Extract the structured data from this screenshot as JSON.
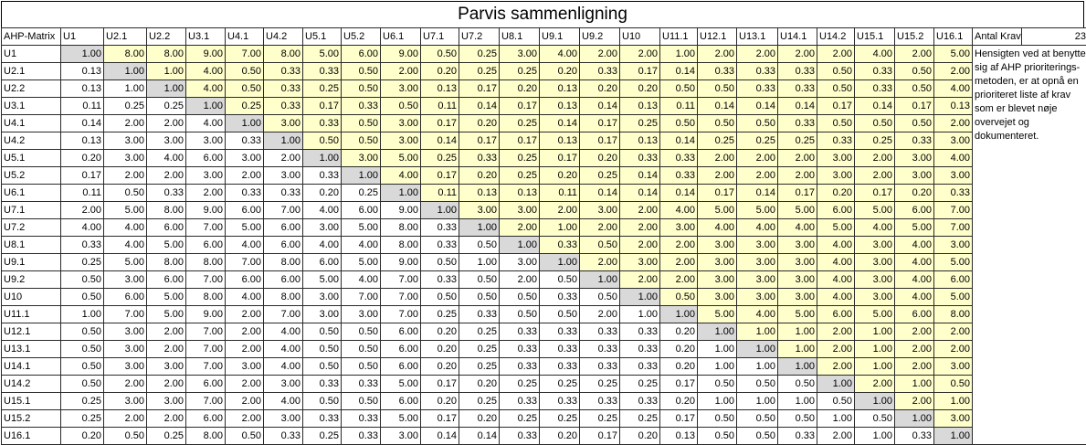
{
  "title": "Parvis sammenligning",
  "corner_label": "AHP-Matrix",
  "aux_label": "Antal Krav",
  "aux_value": "23",
  "note": "Hensigten ved at benytte sig af AHP prioriterings-metoden, er at opnå en prioriteret liste af krav som er blevet nøje overvejet og dokumenteret.",
  "headers": [
    "U1",
    "U2.1",
    "U2.2",
    "U3.1",
    "U4.1",
    "U4.2",
    "U5.1",
    "U5.2",
    "U6.1",
    "U7.1",
    "U7.2",
    "U8.1",
    "U9.1",
    "U9.2",
    "U10",
    "U11.1",
    "U12.1",
    "U13.1",
    "U14.1",
    "U14.2",
    "U15.1",
    "U15.2",
    "U16.1"
  ],
  "rows": [
    {
      "label": "U1",
      "values": [
        "1.00",
        "8.00",
        "8.00",
        "9.00",
        "7.00",
        "8.00",
        "5.00",
        "6.00",
        "9.00",
        "0.50",
        "0.25",
        "3.00",
        "4.00",
        "2.00",
        "2.00",
        "1.00",
        "2.00",
        "2.00",
        "2.00",
        "2.00",
        "4.00",
        "2.00",
        "5.00"
      ]
    },
    {
      "label": "U2.1",
      "values": [
        "0.13",
        "1.00",
        "1.00",
        "4.00",
        "0.50",
        "0.33",
        "0.33",
        "0.50",
        "2.00",
        "0.20",
        "0.25",
        "0.25",
        "0.20",
        "0.33",
        "0.17",
        "0.14",
        "0.33",
        "0.33",
        "0.33",
        "0.50",
        "0.33",
        "0.50",
        "2.00"
      ]
    },
    {
      "label": "U2.2",
      "values": [
        "0.13",
        "1.00",
        "1.00",
        "4.00",
        "0.50",
        "0.33",
        "0.25",
        "0.50",
        "3.00",
        "0.13",
        "0.17",
        "0.20",
        "0.13",
        "0.20",
        "0.20",
        "0.50",
        "0.50",
        "0.33",
        "0.33",
        "0.50",
        "0.33",
        "0.50",
        "4.00"
      ]
    },
    {
      "label": "U3.1",
      "values": [
        "0.11",
        "0.25",
        "0.25",
        "1.00",
        "0.25",
        "0.33",
        "0.17",
        "0.33",
        "0.50",
        "0.11",
        "0.14",
        "0.17",
        "0.13",
        "0.14",
        "0.13",
        "0.11",
        "0.14",
        "0.14",
        "0.14",
        "0.17",
        "0.14",
        "0.17",
        "0.13"
      ]
    },
    {
      "label": "U4.1",
      "values": [
        "0.14",
        "2.00",
        "2.00",
        "4.00",
        "1.00",
        "3.00",
        "0.33",
        "0.50",
        "3.00",
        "0.17",
        "0.20",
        "0.25",
        "0.14",
        "0.17",
        "0.25",
        "0.50",
        "0.50",
        "0.50",
        "0.33",
        "0.50",
        "0.50",
        "0.50",
        "2.00"
      ]
    },
    {
      "label": "U4.2",
      "values": [
        "0.13",
        "3.00",
        "3.00",
        "3.00",
        "0.33",
        "1.00",
        "0.50",
        "0.50",
        "3.00",
        "0.14",
        "0.17",
        "0.17",
        "0.13",
        "0.17",
        "0.13",
        "0.14",
        "0.25",
        "0.25",
        "0.25",
        "0.33",
        "0.25",
        "0.33",
        "3.00"
      ]
    },
    {
      "label": "U5.1",
      "values": [
        "0.20",
        "3.00",
        "4.00",
        "6.00",
        "3.00",
        "2.00",
        "1.00",
        "3.00",
        "5.00",
        "0.25",
        "0.33",
        "0.25",
        "0.17",
        "0.20",
        "0.33",
        "0.33",
        "2.00",
        "2.00",
        "2.00",
        "3.00",
        "2.00",
        "3.00",
        "4.00"
      ]
    },
    {
      "label": "U5.2",
      "values": [
        "0.17",
        "2.00",
        "2.00",
        "3.00",
        "2.00",
        "3.00",
        "0.33",
        "1.00",
        "4.00",
        "0.17",
        "0.20",
        "0.25",
        "0.20",
        "0.25",
        "0.14",
        "0.33",
        "2.00",
        "2.00",
        "2.00",
        "3.00",
        "2.00",
        "3.00",
        "3.00"
      ]
    },
    {
      "label": "U6.1",
      "values": [
        "0.11",
        "0.50",
        "0.33",
        "2.00",
        "0.33",
        "0.33",
        "0.20",
        "0.25",
        "1.00",
        "0.11",
        "0.13",
        "0.13",
        "0.11",
        "0.14",
        "0.14",
        "0.14",
        "0.17",
        "0.14",
        "0.17",
        "0.20",
        "0.17",
        "0.20",
        "0.33"
      ]
    },
    {
      "label": "U7.1",
      "values": [
        "2.00",
        "5.00",
        "8.00",
        "9.00",
        "6.00",
        "7.00",
        "4.00",
        "6.00",
        "9.00",
        "1.00",
        "3.00",
        "3.00",
        "2.00",
        "3.00",
        "2.00",
        "4.00",
        "5.00",
        "5.00",
        "5.00",
        "6.00",
        "5.00",
        "6.00",
        "7.00"
      ]
    },
    {
      "label": "U7.2",
      "values": [
        "4.00",
        "4.00",
        "6.00",
        "7.00",
        "5.00",
        "6.00",
        "3.00",
        "5.00",
        "8.00",
        "0.33",
        "1.00",
        "2.00",
        "1.00",
        "2.00",
        "2.00",
        "3.00",
        "4.00",
        "4.00",
        "4.00",
        "5.00",
        "4.00",
        "5.00",
        "7.00"
      ]
    },
    {
      "label": "U8.1",
      "values": [
        "0.33",
        "4.00",
        "5.00",
        "6.00",
        "4.00",
        "6.00",
        "4.00",
        "4.00",
        "8.00",
        "0.33",
        "0.50",
        "1.00",
        "0.33",
        "0.50",
        "2.00",
        "2.00",
        "3.00",
        "3.00",
        "3.00",
        "4.00",
        "3.00",
        "4.00",
        "3.00"
      ]
    },
    {
      "label": "U9.1",
      "values": [
        "0.25",
        "5.00",
        "8.00",
        "8.00",
        "7.00",
        "8.00",
        "6.00",
        "5.00",
        "9.00",
        "0.50",
        "1.00",
        "3.00",
        "1.00",
        "2.00",
        "3.00",
        "2.00",
        "3.00",
        "3.00",
        "3.00",
        "4.00",
        "3.00",
        "4.00",
        "5.00"
      ]
    },
    {
      "label": "U9.2",
      "values": [
        "0.50",
        "3.00",
        "6.00",
        "7.00",
        "6.00",
        "6.00",
        "5.00",
        "4.00",
        "7.00",
        "0.33",
        "0.50",
        "2.00",
        "0.50",
        "1.00",
        "2.00",
        "2.00",
        "3.00",
        "3.00",
        "3.00",
        "4.00",
        "3.00",
        "4.00",
        "6.00"
      ]
    },
    {
      "label": "U10",
      "values": [
        "0.50",
        "6.00",
        "5.00",
        "8.00",
        "4.00",
        "8.00",
        "3.00",
        "7.00",
        "7.00",
        "0.50",
        "0.50",
        "0.50",
        "0.33",
        "0.50",
        "1.00",
        "0.50",
        "3.00",
        "3.00",
        "3.00",
        "4.00",
        "3.00",
        "4.00",
        "5.00"
      ]
    },
    {
      "label": "U11.1",
      "values": [
        "1.00",
        "7.00",
        "5.00",
        "9.00",
        "2.00",
        "7.00",
        "3.00",
        "3.00",
        "7.00",
        "0.25",
        "0.33",
        "0.50",
        "0.50",
        "2.00",
        "1.00",
        "1.00",
        "5.00",
        "4.00",
        "5.00",
        "6.00",
        "5.00",
        "6.00",
        "8.00"
      ]
    },
    {
      "label": "U12.1",
      "values": [
        "0.50",
        "3.00",
        "2.00",
        "7.00",
        "2.00",
        "4.00",
        "0.50",
        "0.50",
        "6.00",
        "0.20",
        "0.25",
        "0.33",
        "0.33",
        "0.33",
        "0.33",
        "0.20",
        "1.00",
        "1.00",
        "1.00",
        "2.00",
        "1.00",
        "2.00",
        "2.00"
      ]
    },
    {
      "label": "U13.1",
      "values": [
        "0.50",
        "3.00",
        "2.00",
        "7.00",
        "2.00",
        "4.00",
        "0.50",
        "0.50",
        "6.00",
        "0.20",
        "0.25",
        "0.33",
        "0.33",
        "0.33",
        "0.33",
        "0.20",
        "1.00",
        "1.00",
        "1.00",
        "2.00",
        "1.00",
        "2.00",
        "2.00"
      ]
    },
    {
      "label": "U14.1",
      "values": [
        "0.50",
        "3.00",
        "3.00",
        "7.00",
        "3.00",
        "4.00",
        "0.50",
        "0.50",
        "6.00",
        "0.20",
        "0.25",
        "0.33",
        "0.33",
        "0.33",
        "0.33",
        "0.20",
        "1.00",
        "1.00",
        "1.00",
        "2.00",
        "1.00",
        "2.00",
        "3.00"
      ]
    },
    {
      "label": "U14.2",
      "values": [
        "0.50",
        "2.00",
        "2.00",
        "6.00",
        "2.00",
        "3.00",
        "0.33",
        "0.33",
        "5.00",
        "0.17",
        "0.20",
        "0.25",
        "0.25",
        "0.25",
        "0.25",
        "0.17",
        "0.50",
        "0.50",
        "0.50",
        "1.00",
        "2.00",
        "1.00",
        "0.50"
      ]
    },
    {
      "label": "U15.1",
      "values": [
        "0.25",
        "3.00",
        "3.00",
        "7.00",
        "2.00",
        "4.00",
        "0.50",
        "0.50",
        "6.00",
        "0.20",
        "0.25",
        "0.33",
        "0.33",
        "0.33",
        "0.33",
        "0.20",
        "1.00",
        "1.00",
        "1.00",
        "0.50",
        "1.00",
        "2.00",
        "1.00"
      ]
    },
    {
      "label": "U15.2",
      "values": [
        "0.25",
        "2.00",
        "2.00",
        "6.00",
        "2.00",
        "3.00",
        "0.33",
        "0.33",
        "5.00",
        "0.17",
        "0.20",
        "0.25",
        "0.25",
        "0.25",
        "0.25",
        "0.17",
        "0.50",
        "0.50",
        "0.50",
        "1.00",
        "0.50",
        "1.00",
        "3.00"
      ]
    },
    {
      "label": "U16.1",
      "values": [
        "0.20",
        "0.50",
        "0.25",
        "8.00",
        "0.50",
        "0.33",
        "0.25",
        "0.33",
        "3.00",
        "0.14",
        "0.14",
        "0.33",
        "0.20",
        "0.17",
        "0.20",
        "0.13",
        "0.50",
        "0.50",
        "0.33",
        "2.00",
        "1.00",
        "0.33",
        "1.00"
      ]
    }
  ]
}
